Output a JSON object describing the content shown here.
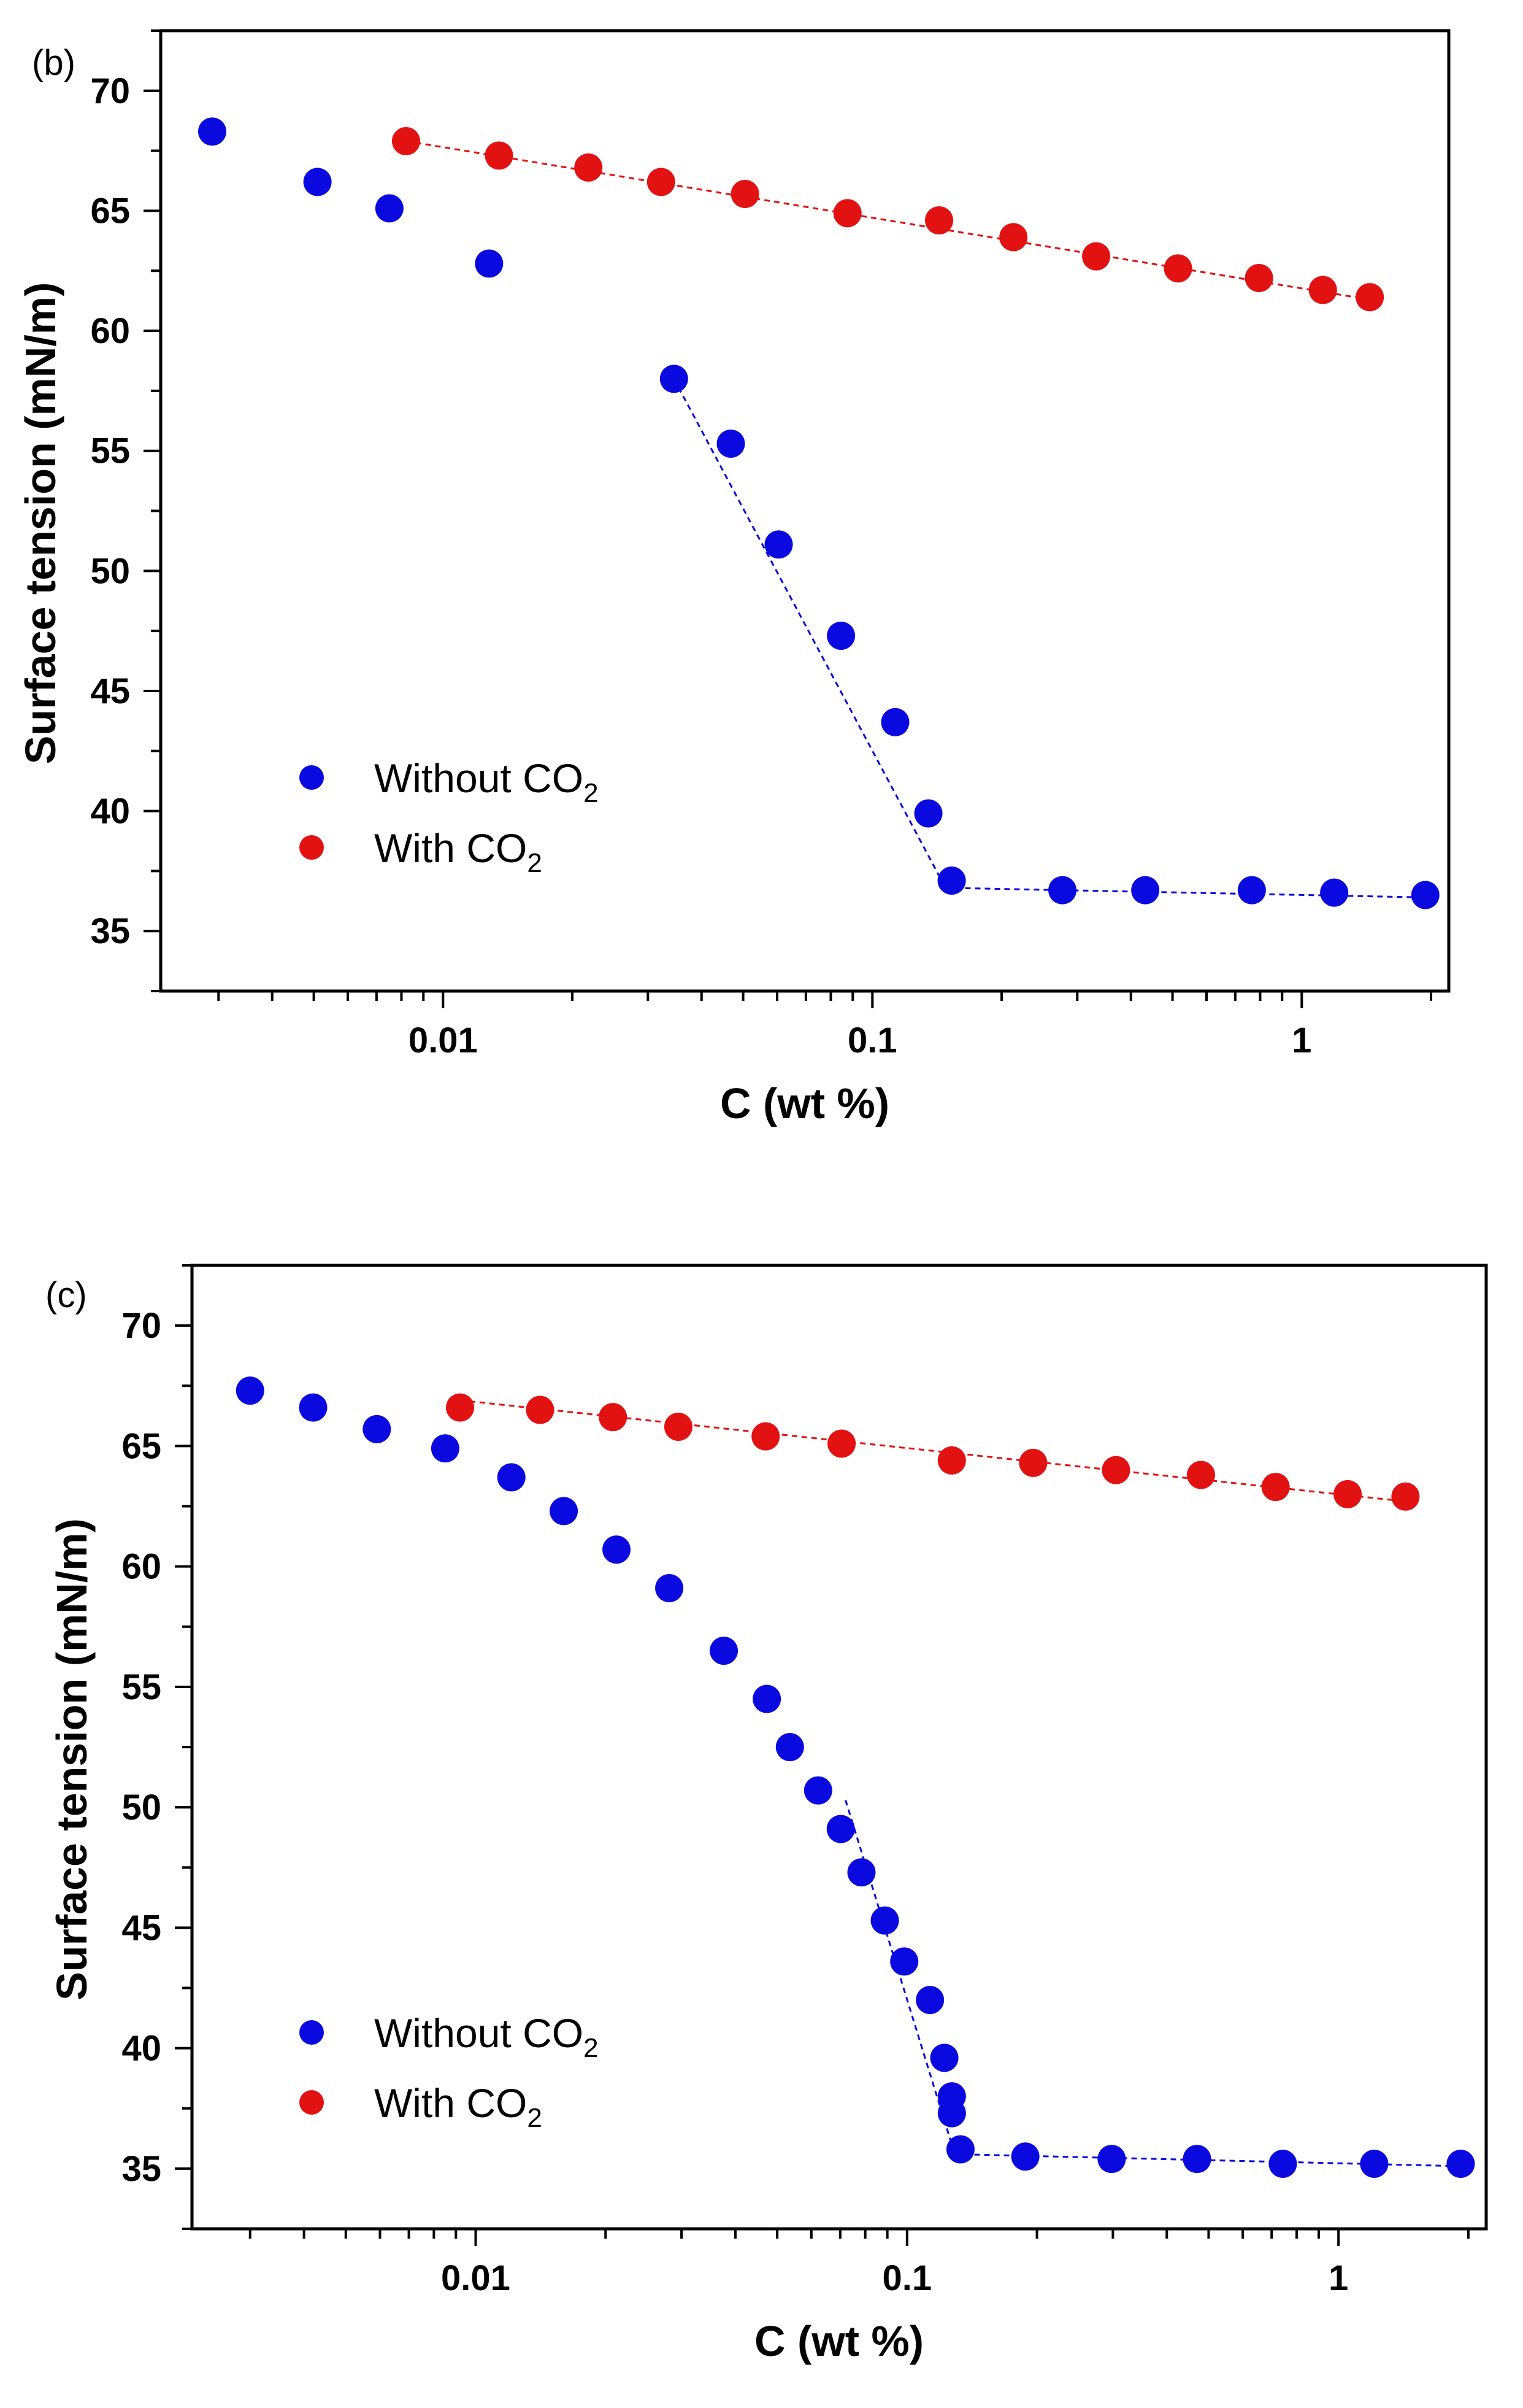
{
  "chart_data": [
    {
      "panel_label": "(b)",
      "type": "scatter",
      "xlabel": "C (wt %)",
      "ylabel": "Surface tension (mN/m)",
      "x_scale": "log",
      "xlim": [
        0.0022,
        2.2
      ],
      "ylim": [
        32.5,
        72.5
      ],
      "x_ticks": [
        0.01,
        0.1,
        1
      ],
      "x_tick_labels": [
        "0.01",
        "0.1",
        "1"
      ],
      "y_ticks": [
        35,
        40,
        45,
        50,
        55,
        60,
        65,
        70
      ],
      "y_tick_labels": [
        "35",
        "40",
        "45",
        "50",
        "55",
        "60",
        "65",
        "70"
      ],
      "grid": false,
      "legend_position": "lower-left",
      "series": [
        {
          "name": "Without CO2",
          "color": "#0a0ae0",
          "x": [
            0.0029,
            0.0051,
            0.0075,
            0.0128,
            0.0345,
            0.0468,
            0.0605,
            0.0845,
            0.113,
            0.135,
            0.153,
            0.277,
            0.432,
            0.765,
            1.19,
            1.94
          ],
          "y": [
            68.3,
            66.2,
            65.1,
            62.8,
            58.0,
            55.3,
            51.1,
            47.3,
            43.7,
            39.9,
            37.1,
            36.7,
            36.7,
            36.7,
            36.6,
            36.5
          ],
          "fit_lines": [
            {
              "x": [
                0.0345,
                0.148
              ],
              "y": [
                58.0,
                36.8
              ]
            },
            {
              "x": [
                0.148,
                1.94
              ],
              "y": [
                36.8,
                36.4
              ]
            }
          ]
        },
        {
          "name": "With CO2",
          "color": "#e31212",
          "x": [
            0.0082,
            0.0135,
            0.0218,
            0.0322,
            0.0505,
            0.0875,
            0.143,
            0.213,
            0.332,
            0.515,
            0.795,
            1.12,
            1.44
          ],
          "y": [
            67.9,
            67.3,
            66.8,
            66.2,
            65.7,
            64.9,
            64.6,
            63.9,
            63.1,
            62.6,
            62.2,
            61.7,
            61.4
          ],
          "fit_lines": [
            {
              "x": [
                0.0082,
                1.44
              ],
              "y": [
                67.9,
                61.3
              ]
            }
          ]
        }
      ]
    },
    {
      "panel_label": "(c)",
      "type": "scatter",
      "xlabel": "C (wt %)",
      "ylabel": "Surface tension (mN/m)",
      "x_scale": "log",
      "xlim": [
        0.0022,
        2.2
      ],
      "ylim": [
        32.5,
        72.5
      ],
      "x_ticks": [
        0.01,
        0.1,
        1
      ],
      "x_tick_labels": [
        "0.01",
        "0.1",
        "1"
      ],
      "y_ticks": [
        35,
        40,
        45,
        50,
        55,
        60,
        65,
        70
      ],
      "y_tick_labels": [
        "35",
        "40",
        "45",
        "50",
        "55",
        "60",
        "65",
        "70"
      ],
      "grid": false,
      "legend_position": "lower-left",
      "series": [
        {
          "name": "Without CO2",
          "color": "#0a0ae0",
          "x": [
            0.003,
            0.0042,
            0.0059,
            0.0085,
            0.0121,
            0.016,
            0.0212,
            0.0281,
            0.0376,
            0.0473,
            0.0535,
            0.0622,
            0.0702,
            0.0784,
            0.0888,
            0.0985,
            0.113,
            0.122,
            0.127,
            0.127,
            0.133,
            0.188,
            0.298,
            0.47,
            0.743,
            1.21,
            1.92
          ],
          "y": [
            67.3,
            66.6,
            65.7,
            64.9,
            63.7,
            62.3,
            60.7,
            59.1,
            56.5,
            54.5,
            52.5,
            50.7,
            49.1,
            47.3,
            45.3,
            43.6,
            42.0,
            39.6,
            38.0,
            37.3,
            35.8,
            35.5,
            35.4,
            35.4,
            35.2,
            35.2,
            35.2
          ],
          "fit_lines": [
            {
              "x": [
                0.072,
                0.129
              ],
              "y": [
                50.3,
                35.6
              ]
            },
            {
              "x": [
                0.129,
                1.92
              ],
              "y": [
                35.6,
                35.1
              ]
            }
          ]
        },
        {
          "name": "With CO2",
          "color": "#e31212",
          "x": [
            0.0092,
            0.0141,
            0.0208,
            0.0295,
            0.047,
            0.0705,
            0.127,
            0.196,
            0.305,
            0.48,
            0.715,
            1.05,
            1.43
          ],
          "y": [
            66.6,
            66.5,
            66.2,
            65.8,
            65.4,
            65.1,
            64.4,
            64.3,
            64.0,
            63.8,
            63.3,
            63.0,
            62.9
          ],
          "fit_lines": [
            {
              "x": [
                0.0092,
                1.43
              ],
              "y": [
                66.9,
                62.7
              ]
            }
          ]
        }
      ]
    }
  ]
}
